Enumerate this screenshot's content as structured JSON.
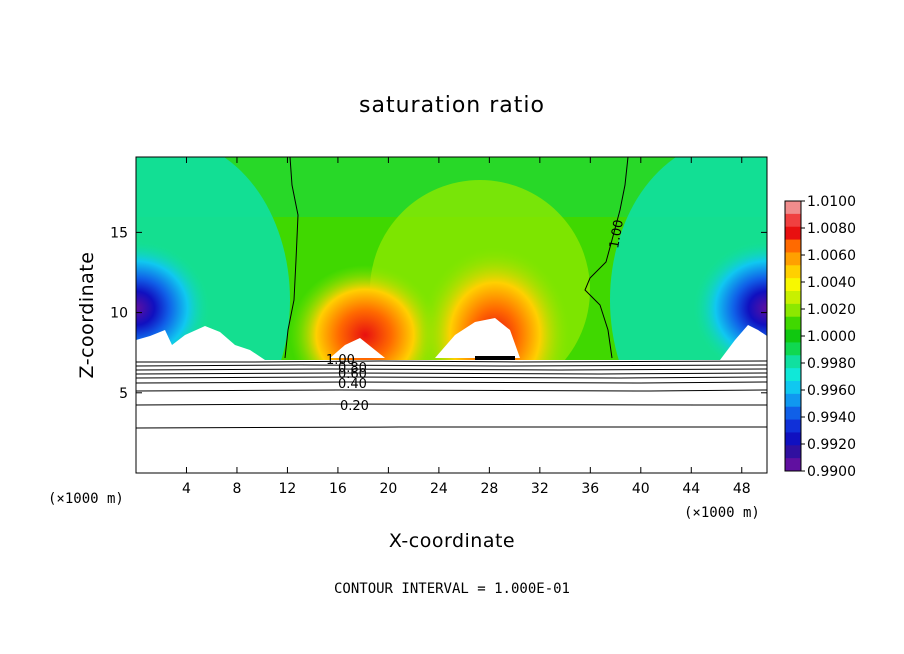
{
  "chart_data": {
    "type": "heatmap",
    "title": "saturation ratio",
    "xlabel": "X-coordinate",
    "ylabel": "Z-coordinate",
    "x_unit_left": "(×1000 m)",
    "x_unit_right": "(×1000 m)",
    "x_ticks": [
      4,
      8,
      12,
      16,
      20,
      24,
      28,
      32,
      36,
      40,
      44,
      48
    ],
    "y_ticks": [
      5,
      10,
      15
    ],
    "xlim": [
      0,
      50
    ],
    "ylim": [
      0,
      19.7
    ],
    "colorbar": {
      "min": 0.99,
      "max": 1.01,
      "tick_labels": [
        "1.0100",
        "1.0080",
        "1.0060",
        "1.0040",
        "1.0020",
        "1.0000",
        "0.9980",
        "0.9960",
        "0.9940",
        "0.9920",
        "0.9900"
      ],
      "colors": [
        "#f08c8c",
        "#f04040",
        "#e81010",
        "#ff6a00",
        "#ffa000",
        "#ffd000",
        "#f8f800",
        "#c8f000",
        "#8ce800",
        "#40d800",
        "#10c810",
        "#10d850",
        "#10e0a0",
        "#10e8d8",
        "#10c8f0",
        "#1098f0",
        "#1060e8",
        "#1030d8",
        "#1010c0",
        "#3010a0",
        "#6010a0"
      ]
    },
    "contour_labels": [
      "1.00",
      "0.80",
      "0.60",
      "0.40",
      "0.20"
    ],
    "contour_interval_note": "CONTOUR INTERVAL = 1.000E-01"
  }
}
